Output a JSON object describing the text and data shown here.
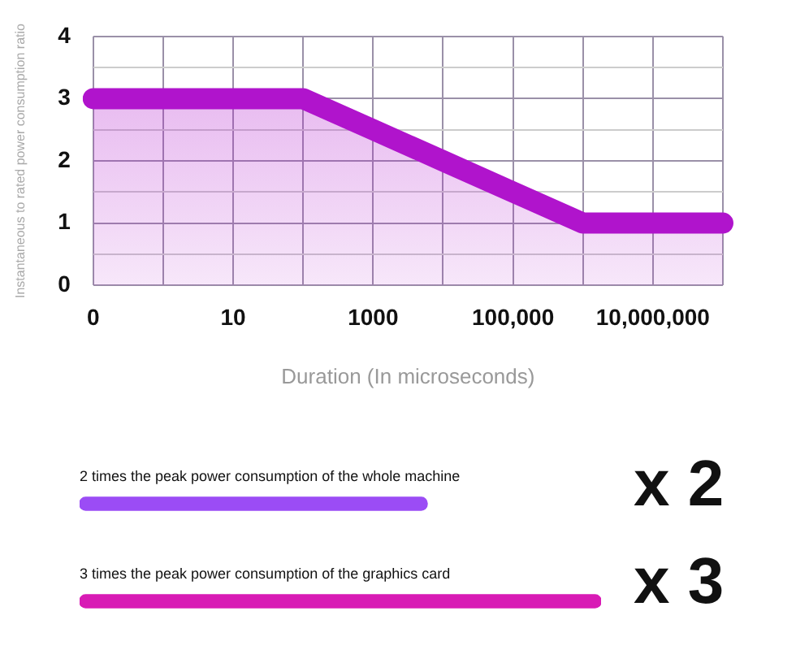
{
  "chart_data": [
    {
      "type": "area",
      "ylabel": "Instantaneous to rated power consumption ratio",
      "xlabel": "Duration (In microseconds)",
      "categories": [
        "0",
        null,
        "10",
        null,
        "1000",
        null,
        "100,000",
        null,
        "10,000,000",
        null
      ],
      "series": [
        {
          "color": "#b014cc",
          "values": [
            3,
            3,
            3,
            3,
            2.5,
            2,
            1.5,
            1,
            1,
            1
          ]
        }
      ],
      "ylim": [
        0,
        4
      ],
      "yticks": [
        0,
        {
          "value": 0.5,
          "label": null
        },
        1,
        {
          "value": 1.5,
          "label": null
        },
        2,
        {
          "value": 2.5,
          "label": null
        },
        3,
        {
          "value": 3.5,
          "label": null
        },
        4
      ],
      "grid": true,
      "legend": false,
      "marker": "none",
      "line_style": "solid"
    },
    {
      "type": "bar",
      "orientation": "horizontal",
      "categories": [
        "2 times the peak power consumption of the whole machine",
        "3 times the peak power consumption of the graphics card"
      ],
      "values": [
        2,
        3
      ],
      "colors": [
        "#9b4cf5",
        "#d81bb5"
      ],
      "value_labels": [
        "x 2",
        "x 3"
      ],
      "legend": false
    }
  ]
}
